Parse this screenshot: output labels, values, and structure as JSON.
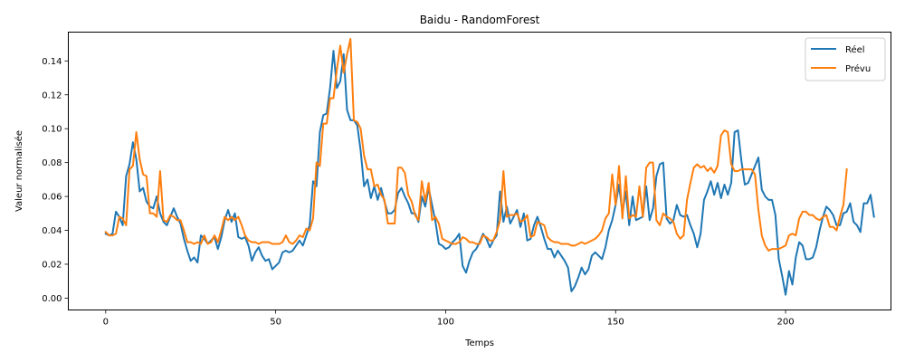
{
  "chart_data": {
    "type": "line",
    "title": "Baidu - RandomForest",
    "xlabel": "Temps",
    "ylabel": "Valeur normalisée",
    "xlim": [
      -11,
      231
    ],
    "ylim": [
      -0.007,
      0.157
    ],
    "xticks": [
      0,
      50,
      100,
      150,
      200
    ],
    "yticks": [
      0.0,
      0.02,
      0.04,
      0.06,
      0.08,
      0.1,
      0.12,
      0.14
    ],
    "ytick_labels": [
      "0.00",
      "0.02",
      "0.04",
      "0.06",
      "0.08",
      "0.10",
      "0.12",
      "0.14"
    ],
    "xtick_labels": [
      "0",
      "50",
      "100",
      "150",
      "200"
    ],
    "grid": false,
    "legend_position": "top-right",
    "series": [
      {
        "name": "Réel",
        "color": "#1f77b4",
        "values": [
          0.038,
          0.037,
          0.038,
          0.051,
          0.048,
          0.043,
          0.072,
          0.079,
          0.092,
          0.082,
          0.063,
          0.065,
          0.057,
          0.054,
          0.053,
          0.06,
          0.05,
          0.045,
          0.043,
          0.048,
          0.053,
          0.048,
          0.044,
          0.035,
          0.028,
          0.022,
          0.024,
          0.021,
          0.037,
          0.035,
          0.032,
          0.034,
          0.036,
          0.029,
          0.036,
          0.046,
          0.052,
          0.045,
          0.05,
          0.036,
          0.035,
          0.036,
          0.031,
          0.022,
          0.027,
          0.03,
          0.025,
          0.022,
          0.023,
          0.017,
          0.019,
          0.021,
          0.027,
          0.028,
          0.027,
          0.028,
          0.031,
          0.034,
          0.031,
          0.037,
          0.043,
          0.069,
          0.066,
          0.098,
          0.108,
          0.109,
          0.124,
          0.146,
          0.124,
          0.128,
          0.144,
          0.111,
          0.105,
          0.105,
          0.102,
          0.087,
          0.066,
          0.07,
          0.059,
          0.066,
          0.058,
          0.065,
          0.057,
          0.05,
          0.05,
          0.052,
          0.062,
          0.065,
          0.06,
          0.056,
          0.05,
          0.05,
          0.045,
          0.06,
          0.054,
          0.065,
          0.055,
          0.045,
          0.032,
          0.031,
          0.029,
          0.03,
          0.033,
          0.035,
          0.038,
          0.019,
          0.015,
          0.022,
          0.027,
          0.029,
          0.033,
          0.038,
          0.035,
          0.03,
          0.034,
          0.037,
          0.063,
          0.045,
          0.054,
          0.044,
          0.048,
          0.052,
          0.042,
          0.05,
          0.034,
          0.035,
          0.043,
          0.048,
          0.042,
          0.035,
          0.029,
          0.029,
          0.024,
          0.028,
          0.025,
          0.022,
          0.018,
          0.004,
          0.007,
          0.012,
          0.018,
          0.014,
          0.017,
          0.025,
          0.027,
          0.025,
          0.023,
          0.03,
          0.04,
          0.046,
          0.055,
          0.067,
          0.05,
          0.063,
          0.043,
          0.06,
          0.046,
          0.047,
          0.048,
          0.066,
          0.046,
          0.053,
          0.072,
          0.079,
          0.08,
          0.047,
          0.044,
          0.046,
          0.055,
          0.049,
          0.048,
          0.049,
          0.043,
          0.038,
          0.03,
          0.038,
          0.058,
          0.063,
          0.069,
          0.061,
          0.068,
          0.059,
          0.067,
          0.061,
          0.068,
          0.098,
          0.099,
          0.081,
          0.067,
          0.068,
          0.073,
          0.078,
          0.083,
          0.064,
          0.06,
          0.058,
          0.058,
          0.049,
          0.023,
          0.013,
          0.002,
          0.016,
          0.008,
          0.024,
          0.033,
          0.031,
          0.023,
          0.023,
          0.024,
          0.03,
          0.04,
          0.048,
          0.054,
          0.052,
          0.049,
          0.043,
          0.043,
          0.05,
          0.051,
          0.056,
          0.045,
          0.043,
          0.039,
          0.056,
          0.056,
          0.061,
          0.048
        ]
      },
      {
        "name": "Prévu",
        "color": "#ff7f0e",
        "values": [
          0.039,
          0.037,
          0.037,
          0.038,
          0.048,
          0.047,
          0.043,
          0.076,
          0.078,
          0.098,
          0.082,
          0.073,
          0.072,
          0.05,
          0.05,
          0.048,
          0.075,
          0.046,
          0.045,
          0.049,
          0.048,
          0.046,
          0.046,
          0.04,
          0.033,
          0.033,
          0.032,
          0.033,
          0.032,
          0.037,
          0.032,
          0.033,
          0.037,
          0.033,
          0.04,
          0.048,
          0.046,
          0.048,
          0.046,
          0.048,
          0.043,
          0.037,
          0.034,
          0.033,
          0.033,
          0.032,
          0.033,
          0.033,
          0.033,
          0.032,
          0.032,
          0.032,
          0.033,
          0.037,
          0.033,
          0.032,
          0.034,
          0.037,
          0.036,
          0.041,
          0.04,
          0.047,
          0.08,
          0.078,
          0.103,
          0.103,
          0.118,
          0.118,
          0.135,
          0.149,
          0.133,
          0.144,
          0.153,
          0.105,
          0.104,
          0.1,
          0.084,
          0.076,
          0.076,
          0.066,
          0.067,
          0.061,
          0.058,
          0.044,
          0.044,
          0.044,
          0.077,
          0.077,
          0.074,
          0.061,
          0.057,
          0.049,
          0.046,
          0.069,
          0.057,
          0.068,
          0.046,
          0.048,
          0.044,
          0.035,
          0.034,
          0.033,
          0.032,
          0.032,
          0.033,
          0.036,
          0.035,
          0.033,
          0.033,
          0.032,
          0.032,
          0.037,
          0.036,
          0.034,
          0.034,
          0.039,
          0.046,
          0.075,
          0.048,
          0.049,
          0.049,
          0.05,
          0.045,
          0.046,
          0.049,
          0.036,
          0.037,
          0.045,
          0.044,
          0.043,
          0.036,
          0.034,
          0.033,
          0.033,
          0.032,
          0.032,
          0.032,
          0.031,
          0.031,
          0.032,
          0.033,
          0.032,
          0.033,
          0.034,
          0.035,
          0.037,
          0.04,
          0.047,
          0.05,
          0.073,
          0.055,
          0.078,
          0.047,
          0.072,
          0.047,
          0.049,
          0.048,
          0.066,
          0.048,
          0.077,
          0.08,
          0.08,
          0.046,
          0.043,
          0.05,
          0.048,
          0.047,
          0.045,
          0.038,
          0.035,
          0.037,
          0.058,
          0.068,
          0.077,
          0.079,
          0.077,
          0.078,
          0.075,
          0.077,
          0.074,
          0.078,
          0.096,
          0.099,
          0.098,
          0.079,
          0.075,
          0.075,
          0.076,
          0.076,
          0.076,
          0.076,
          0.073,
          0.052,
          0.037,
          0.031,
          0.028,
          0.029,
          0.029,
          0.029,
          0.03,
          0.031,
          0.037,
          0.038,
          0.037,
          0.047,
          0.051,
          0.051,
          0.049,
          0.049,
          0.047,
          0.046,
          0.048,
          0.049,
          0.042,
          0.042,
          0.04,
          0.048,
          0.055,
          0.076
        ]
      }
    ]
  }
}
